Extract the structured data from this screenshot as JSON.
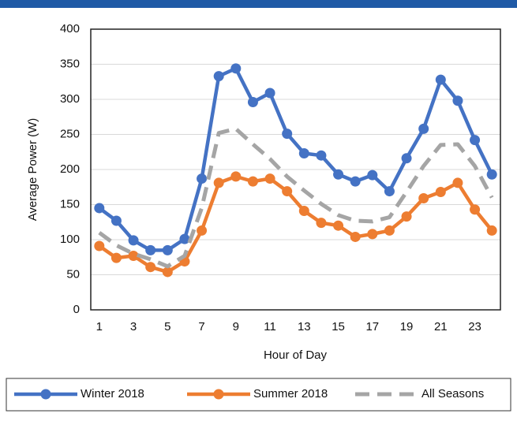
{
  "chart_data": {
    "type": "line",
    "x_label": "Hour of Day",
    "y_label": "Average Power (W)",
    "x": [
      1,
      2,
      3,
      4,
      5,
      6,
      7,
      8,
      9,
      10,
      11,
      12,
      13,
      14,
      15,
      16,
      17,
      18,
      19,
      20,
      21,
      22,
      23,
      24
    ],
    "xlim": [
      0.5,
      24.5
    ],
    "xticks": [
      1,
      3,
      5,
      7,
      9,
      11,
      13,
      15,
      17,
      19,
      21,
      23
    ],
    "ylim": [
      0,
      400
    ],
    "yticks": [
      0,
      50,
      100,
      150,
      200,
      250,
      300,
      350,
      400
    ],
    "grid": true,
    "legend": "bottom",
    "series": [
      {
        "name": "Winter 2018",
        "color": "#4472c4",
        "style": "solid-markers",
        "values": [
          145,
          127,
          99,
          85,
          85,
          101,
          187,
          333,
          344,
          296,
          309,
          251,
          223,
          220,
          193,
          183,
          192,
          169,
          216,
          258,
          328,
          298,
          242,
          193
        ]
      },
      {
        "name": "Summer 2018",
        "color": "#ed7d31",
        "style": "solid-markers",
        "values": [
          91,
          74,
          77,
          61,
          54,
          69,
          113,
          181,
          190,
          183,
          187,
          169,
          141,
          124,
          120,
          104,
          108,
          113,
          133,
          159,
          168,
          181,
          143,
          113
        ]
      },
      {
        "name": "All Seasons",
        "color": "#a5a5a5",
        "style": "dashed",
        "values": [
          110,
          92,
          80,
          72,
          62,
          77,
          145,
          252,
          258,
          236,
          215,
          190,
          170,
          151,
          135,
          127,
          126,
          132,
          168,
          205,
          235,
          236,
          205,
          160
        ]
      }
    ]
  }
}
